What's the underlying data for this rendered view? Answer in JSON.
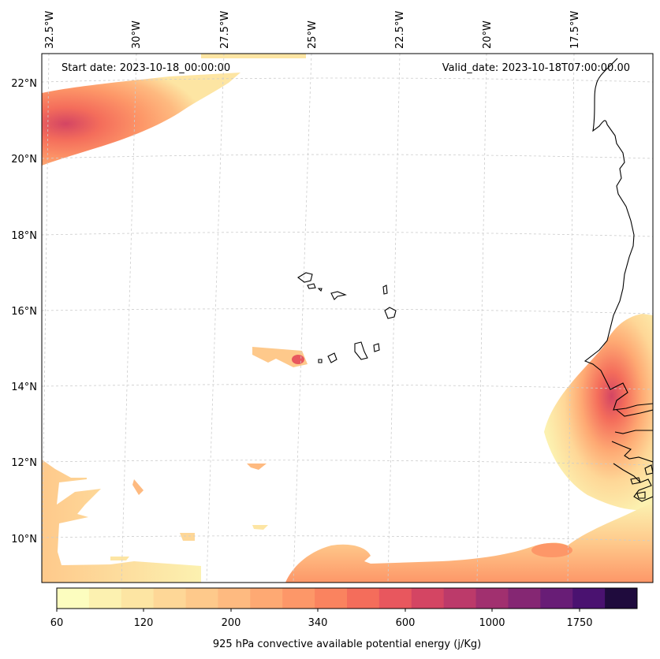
{
  "header": {
    "start_date": "Start date: 2023-10-18_00:00:00",
    "valid_date": "Valid_date: 2023-10-18T07:00:00.00"
  },
  "lon_labels": [
    "32.5°W",
    "30°W",
    "27.5°W",
    "25°W",
    "22.5°W",
    "20°W",
    "17.5°W"
  ],
  "lat_labels": [
    "22°N",
    "20°N",
    "18°N",
    "16°N",
    "14°N",
    "12°N",
    "10°N"
  ],
  "colorbar": {
    "tick_labels": [
      "60",
      "120",
      "200",
      "340",
      "600",
      "1000",
      "1750"
    ],
    "label": "925 hPa convective available potential energy (j/Kg)",
    "colors": [
      "#fcfdbf",
      "#fcf1b0",
      "#fde5a3",
      "#fed797",
      "#fec98b",
      "#feba80",
      "#fea973",
      "#fd9768",
      "#fa835f",
      "#f46d5b",
      "#e8575e",
      "#d44563",
      "#bc3a6a",
      "#a1306f",
      "#852773",
      "#681d76",
      "#4a1270",
      "#1f0b3d"
    ]
  },
  "map": {
    "land_color": "#ffffff",
    "coastline_color": "#000000",
    "gridline_color": "#cccccc"
  }
}
